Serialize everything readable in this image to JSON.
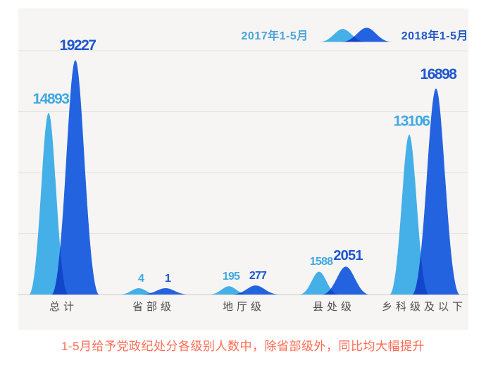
{
  "legend": {
    "series_2017_label": "2017年1-5月",
    "series_2018_label": "2018年1-5月"
  },
  "caption": {
    "text": "1-5月给予党政纪处分各级别人数中，除省部级外，同比均大幅提升"
  },
  "colors": {
    "series_2017": "#45AFE8",
    "series_2018": "#2463E0",
    "overlap": "#1247C9",
    "series_2017_text": "#41A8E2",
    "series_2018_text": "#1E56CE",
    "legend_2017_text": "#4AA3DC",
    "legend_2018_text": "#2058C8",
    "caption_text": "#FF6A52",
    "axis_label": "#4C4C4C",
    "gridline": "#E3E2E0",
    "baseline": "#D6D5D2",
    "panel_bg": "#F6F5F3"
  },
  "chart_data": {
    "type": "area",
    "title": "",
    "categories": [
      "总计",
      "省部级",
      "地厅级",
      "县处级",
      "乡科级及以下"
    ],
    "series": [
      {
        "name": "2017年1-5月",
        "values": [
          14893,
          4,
          195,
          1588,
          13106
        ]
      },
      {
        "name": "2018年1-5月",
        "values": [
          19227,
          1,
          277,
          2051,
          16898
        ]
      }
    ],
    "xlabel": "",
    "ylabel": "",
    "ylim": [
      0,
      20000
    ],
    "gridline_interval": 5000,
    "grid": "horizontal",
    "legend_position": "top-right",
    "value_labels": "above-each-peak",
    "style": "overlapping smoothed bell/area humps per category, 2017 light blue left, 2018 dark blue right, overlap darker blue"
  }
}
